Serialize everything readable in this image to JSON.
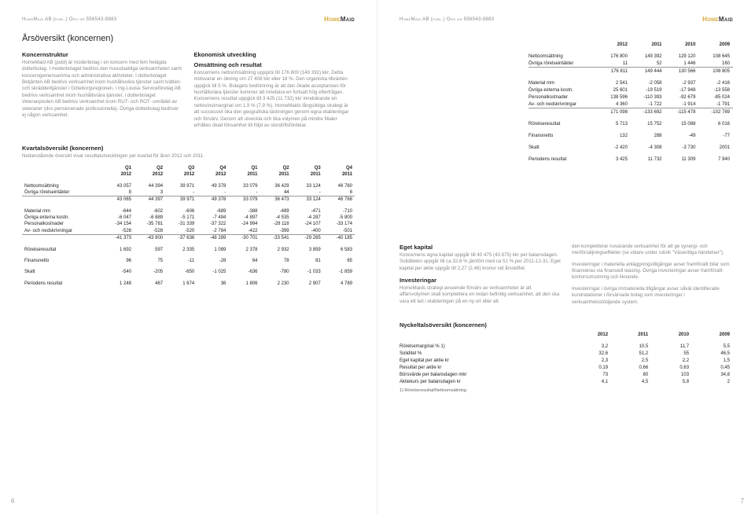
{
  "header": {
    "company_line": "HomeMaid AB (publ.) Org nr 556543-8883",
    "logo_parts": [
      "Home",
      "Maid"
    ]
  },
  "left_page": {
    "title": "Årsöversikt (koncernen)",
    "col1": {
      "h": "Koncernstruktur",
      "t": "HomeMaid AB (publ) är moderbolag i en koncern med fem helägda dotterbolag. I moderbolaget bedrivs den huvudsakliga verksamheten samt koncerngemensamma och administrativa aktiviteter. I dotterbolaget Betjänten AB bedrivs verksamhet inom hushållsnära tjänster samt tvätteri- och skrädderitjänster i Göteborgsregionen, i Ing-Louise Serviceföretag AB bedrivs verksamhet inom hushållsnära tjänster, i dotterbolaget Veteranpoolen AB bedrivs verksamhet inom RUT- och ROT- området av veteraner (dvs pensionerade professionella). Övriga dotterbolag bedriver ej någon verksamhet."
    },
    "col2": {
      "h1": "Ekonomisk utveckling",
      "h2": "Omsättning och resultat",
      "t": "Koncernens nettoomsättning uppgick till 176 800 (149 392) kkr. Detta motsvarar en ökning om 27 408 kkr eller 18 %. Den organiska tillväxten uppgick till 5 %. Bolagets bedömning är att den ökade acceptansen för hushållsnära tjänster kommer att innebära en fortsatt hög efterfrågan. Koncernens resultat uppgick till 3 425 (11 732) kkr innebärande en nettovinstmarginal om 1,9 % (7,9 %). HomeMaids långsiktiga strategi är att successivt öka den geografiska täckningen genom egna etableringar och förvärv. Genom att utveckla och öka volymen på mindre filialer erhålles ökad lönsamhet till följd av stordriftsfördelar."
    },
    "kvartal": {
      "title": "Kvartalsöversikt (koncernen)",
      "sub": "Nedanstående översikt visar resultatutvecklingen per kvartal för åren 2012 och 2011.",
      "head_q": [
        "Q1",
        "Q2",
        "Q3",
        "Q4",
        "Q1",
        "Q2",
        "Q3",
        "Q4"
      ],
      "head_y": [
        "2012",
        "2012",
        "2012",
        "2012",
        "2011",
        "2011",
        "2011",
        "2011"
      ],
      "rows": [
        {
          "l": "Nettoomsättning",
          "v": [
            "43 057",
            "44 394",
            "39 971",
            "49 378",
            "33 079",
            "36 429",
            "33 124",
            "46 760"
          ]
        },
        {
          "l": "Övriga rörelseintäkter",
          "v": [
            "8",
            "3",
            "-",
            "-",
            "-",
            "44",
            "-",
            "8"
          ]
        }
      ],
      "sum1": {
        "l": "",
        "v": [
          "43 065",
          "44 397",
          "39 971",
          "49 378",
          "33 079",
          "36 473",
          "33 124",
          "46 768"
        ]
      },
      "rows2": [
        {
          "l": "Material mm",
          "v": [
            "-644",
            "-602",
            "-606",
            "-689",
            "-388",
            "-489",
            "-471",
            "-710"
          ]
        },
        {
          "l": "Övriga externa kostn.",
          "v": [
            "-6 047",
            "-6 889",
            "-5 171",
            "-7 494",
            "-4 897",
            "-4 535",
            "-4 287",
            "-5 800"
          ]
        },
        {
          "l": "Personalkostnader",
          "v": [
            "-34 154",
            "-35 781",
            "-31 339",
            "-37 322",
            "-24 994",
            "-28 118",
            "-24 107",
            "-33 174"
          ]
        },
        {
          "l": "Av- och nedskrivningar",
          "v": [
            "-528",
            "-528",
            "-520",
            "-2 784",
            "-422",
            "-399",
            "-400",
            "-501"
          ]
        }
      ],
      "sum2": {
        "l": "",
        "v": [
          "-41 373",
          "-43 800",
          "-37 636",
          "-48 289",
          "-30 701",
          "-33 541",
          "-29 265",
          "-40 185"
        ]
      },
      "rows3": [
        {
          "l": "Rörelseresultat",
          "v": [
            "1 692",
            "597",
            "2 335",
            "1 089",
            "2 378",
            "2 932",
            "3 859",
            "6 583"
          ]
        },
        {
          "l": "Finansnetto",
          "v": [
            "96",
            "75",
            "-11",
            "-28",
            "64",
            "78",
            "81",
            "65"
          ]
        },
        {
          "l": "Skatt",
          "v": [
            "-540",
            "-205",
            "-650",
            "-1 025",
            "-636",
            "-780",
            "-1 033",
            "-1 859"
          ]
        },
        {
          "l": "Periodens resultat",
          "v": [
            "1 248",
            "467",
            "1 674",
            "36",
            "1 806",
            "2 230",
            "2 907",
            "4 789"
          ]
        }
      ]
    },
    "pg": "6"
  },
  "right_page": {
    "years": [
      "2012",
      "2011",
      "2010",
      "2009"
    ],
    "t1_rows": [
      {
        "l": "Nettoomsättning",
        "v": [
          "176 800",
          "149 392",
          "129 120",
          "108 645"
        ]
      },
      {
        "l": "Övriga rörelseintäkter",
        "v": [
          "11",
          "52",
          "1 446",
          "160"
        ]
      }
    ],
    "t1_sum": {
      "l": "",
      "v": [
        "176 811",
        "149 444",
        "130 566",
        "108 805"
      ]
    },
    "t2_rows": [
      {
        "l": "Material mm",
        "v": [
          "2 541",
          "-2 058",
          "-2 937",
          "-2 416"
        ]
      },
      {
        "l": "Övriga externa kostn.",
        "v": [
          "25 601",
          "-19 519",
          "-17 948",
          "-13 558"
        ]
      },
      {
        "l": "Personalkostnader",
        "v": [
          "138 596",
          "-110 393",
          "-92 679",
          "-85 024"
        ]
      },
      {
        "l": "Av- och nedskrivningar",
        "v": [
          "4 360",
          "-1 722",
          "-1 914",
          "-1 791"
        ]
      }
    ],
    "t2_sum": {
      "l": "",
      "v": [
        "171 098",
        "-133 692",
        "-115 478",
        "-102 789"
      ]
    },
    "t3_rows": [
      {
        "l": "Rörelseresultat",
        "v": [
          "5 713",
          "15 752",
          "15 088",
          "6 016"
        ]
      },
      {
        "l": "Finansnetto",
        "v": [
          "132",
          "288",
          "-49",
          "-77"
        ]
      },
      {
        "l": "Skatt",
        "v": [
          "-2 420",
          "-4 308",
          "-3 730",
          "2001"
        ]
      },
      {
        "l": "Periodens resultat",
        "v": [
          "3 425",
          "11 732",
          "11 309",
          "7 940"
        ]
      }
    ],
    "eget": {
      "h": "Eget kapital",
      "t": "Koncernens egna kapital uppgår till 40 475 (43 875) kkr per balansdagen. Soliditeten uppgår till ca 32,6 % jämfört med ca 51 % per 2011-12-31. Eget kapital per aktie uppgår till 2,27 (2,46) kronor vid årsskiftet."
    },
    "inv": {
      "h": "Investeringar",
      "t": "HomeMaids strategi avseende förvärv av verksamheter är att affärsvolymen skall komplettera en redan befintlig verksamhet, att den ska vara ett led i etableringen på en ny ort eller att"
    },
    "col2_p1": "den kompletterar nuvarande verksamhet för att ge synergi- och merförsäljningseffekter (se vidare under rubrik \"Väsentliga händelser\").",
    "col2_p2": "Investeringar i materiella anläggningstillgångar avser framförallt bilar som finansieras via finansiell leasing. Övriga investeringar avser framförallt kontorsutrustning och liknande.",
    "col2_p3": "Investeringar i övriga immateriella tillgångar avser såväl identifierade kundrelationer i förvärvade bolag som investeringar i verksamhetsstödjande system.",
    "nyckel": {
      "title": "Nyckeltalsöversikt (koncernen)",
      "years": [
        "2012",
        "2011",
        "2010",
        "2009"
      ],
      "rows": [
        {
          "l": "Rörelsemarginal % 1)",
          "v": [
            "3,2",
            "10,5",
            "11,7",
            "5,5"
          ]
        },
        {
          "l": "Soliditet %",
          "v": [
            "32,6",
            "51,2",
            "55",
            "46,5"
          ]
        },
        {
          "l": "Eget kapital per aktie kr",
          "v": [
            "2,3",
            "2,5",
            "2,2",
            "1,5"
          ]
        },
        {
          "l": "Resultat per aktie kr",
          "v": [
            "0,19",
            "0,66",
            "0,63",
            "0,45"
          ]
        },
        {
          "l": "Börsvärde per balansdagen mkr",
          "v": [
            "73",
            "80",
            "103",
            "34,8"
          ]
        },
        {
          "l": "Aktiekurs per balansdagen kr",
          "v": [
            "4,1",
            "4,5",
            "5,8",
            "2"
          ]
        }
      ],
      "note": "1) Rörelseresultat/Nettoomsättning"
    },
    "pg": "7"
  }
}
